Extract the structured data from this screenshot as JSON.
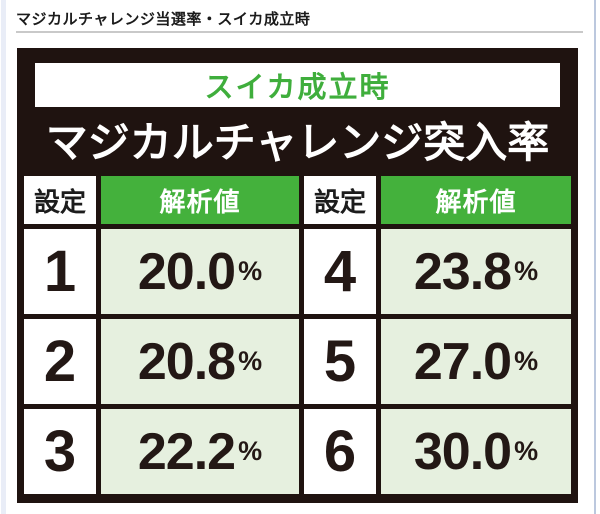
{
  "page": {
    "heading": "マジカルチャレンジ当選率・スイカ成立時"
  },
  "table": {
    "subtitle": "スイカ成立時",
    "title": "マジカルチャレンジ突入率",
    "headers": {
      "setting": "設定",
      "value": "解析値"
    },
    "unit": "%",
    "rows": [
      {
        "setting_left": "1",
        "value_left": "20.0",
        "setting_right": "4",
        "value_right": "23.8"
      },
      {
        "setting_left": "2",
        "value_left": "20.8",
        "setting_right": "5",
        "value_right": "27.0"
      },
      {
        "setting_left": "3",
        "value_left": "22.2",
        "setting_right": "6",
        "value_right": "30.0"
      }
    ],
    "colors": {
      "header_green": "#44b13c",
      "subtitle_green": "#3fae3c",
      "light_green_cell": "#e6f0df",
      "frame_black": "#1f1310",
      "text_dark": "#231815"
    }
  },
  "chart_data": {
    "type": "table",
    "title": "マジカルチャレンジ突入率",
    "subtitle": "スイカ成立時",
    "columns": [
      "設定",
      "解析値",
      "設定",
      "解析値"
    ],
    "rows": [
      [
        "1",
        "20.0%",
        "4",
        "23.8%"
      ],
      [
        "2",
        "20.8%",
        "5",
        "27.0%"
      ],
      [
        "3",
        "22.2%",
        "6",
        "30.0%"
      ]
    ],
    "settings_to_value_percent": {
      "1": 20.0,
      "2": 20.8,
      "3": 22.2,
      "4": 23.8,
      "5": 27.0,
      "6": 30.0
    }
  }
}
